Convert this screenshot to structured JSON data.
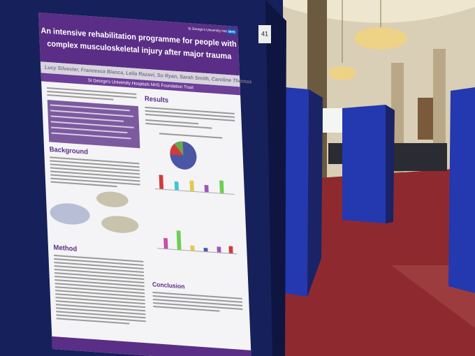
{
  "poster": {
    "tag": "41",
    "hospital": "St George's University Hospitals",
    "nhs": "NHS",
    "title_lines": [
      "An intensive rehabilitation programme for people with",
      "complex musculoskeletal injury after major trauma"
    ],
    "authors": "Lucy Silvester, Francesca Bianca, Leila Razavi, Su Ryan, Sarah Smith, Caroline Thomas",
    "trust": "St George's University Hospitals NHS Foundation Trust",
    "sections": [
      "Background",
      "Results",
      "Method",
      "Conclusion"
    ]
  }
}
